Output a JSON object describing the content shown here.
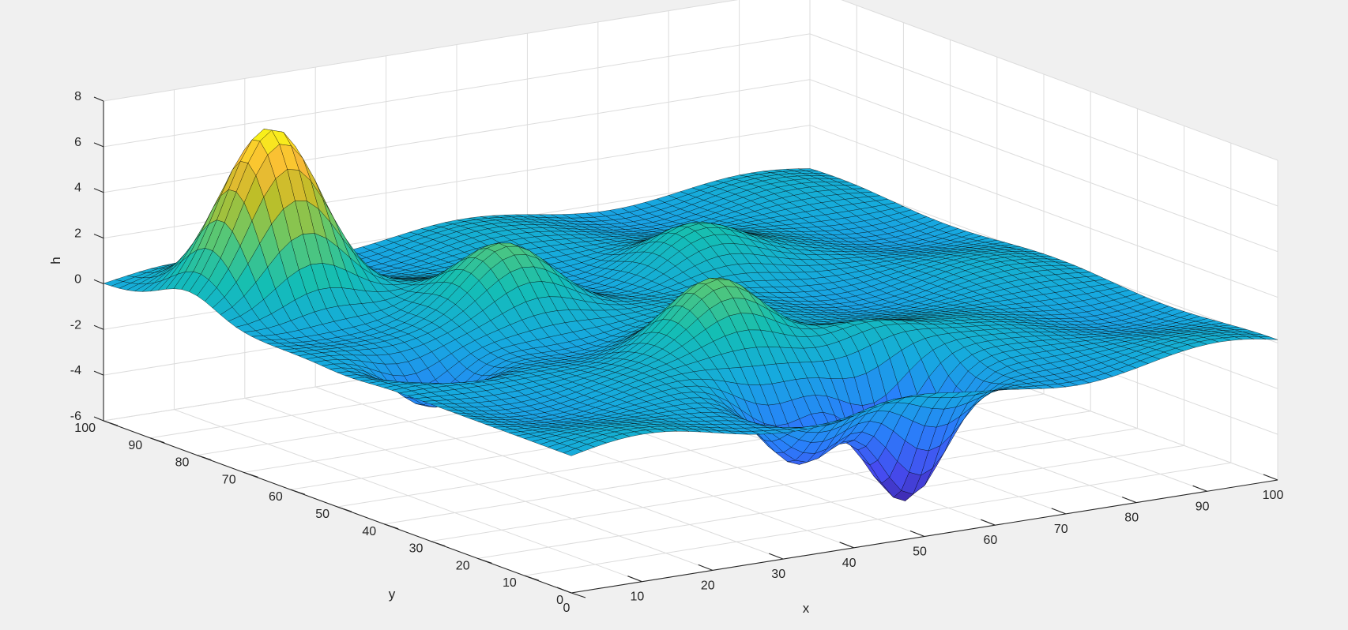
{
  "chart_data": {
    "type": "surface",
    "title": "",
    "xlabel": "x",
    "ylabel": "y",
    "zlabel": "h",
    "xlim": [
      0,
      100
    ],
    "ylim": [
      0,
      100
    ],
    "zlim": [
      -6,
      8
    ],
    "x_ticks": [
      0,
      10,
      20,
      30,
      40,
      50,
      60,
      70,
      80,
      90,
      100
    ],
    "y_ticks": [
      0,
      10,
      20,
      30,
      40,
      50,
      60,
      70,
      80,
      90,
      100
    ],
    "z_ticks": [
      -6,
      -4,
      -2,
      0,
      2,
      4,
      6,
      8
    ],
    "grid": true,
    "colormap": "parula",
    "edge_color": "#000000",
    "grid_resolution": 60,
    "features": [
      {
        "kind": "peak",
        "x": 12,
        "y": 82,
        "h": 7.6
      },
      {
        "kind": "peak",
        "x": 32,
        "y": 62,
        "h": 2.8
      },
      {
        "kind": "peak",
        "x": 42,
        "y": 32,
        "h": 3.3
      },
      {
        "kind": "peak",
        "x": 62,
        "y": 68,
        "h": 1.8
      },
      {
        "kind": "peak",
        "x": 57,
        "y": 23,
        "h": 1.5
      },
      {
        "kind": "valley",
        "x": 55,
        "y": 12,
        "h": -5.8
      },
      {
        "kind": "valley",
        "x": 40,
        "y": 12,
        "h": -3.2
      },
      {
        "kind": "valley",
        "x": 12,
        "y": 48,
        "h": -2.5
      }
    ]
  }
}
